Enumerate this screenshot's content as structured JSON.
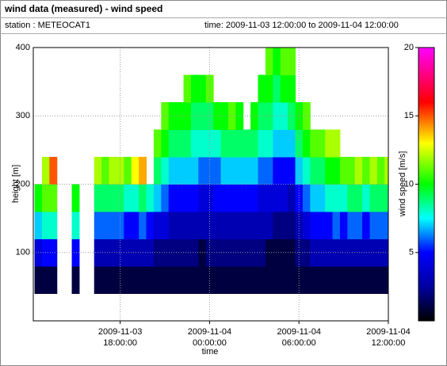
{
  "chart_data": {
    "type": "heatmap",
    "title": "wind data (measured) - wind speed",
    "station": "station : METEOCAT1",
    "period": "time: 2009-11-03 12:00:00 to 2009-11-04 12:00:00",
    "xlabel": "time",
    "ylabel": "height [m]",
    "zlabel": "wind speed [m/s]",
    "xlim": [
      "2009-11-03 12:10:00",
      "2009-11-04 12:00:00"
    ],
    "xticks": [
      "2009-11-03 18:00:00",
      "2009-11-04 00:00:00",
      "2009-11-04 06:00:00",
      "2009-11-04 12:00:00"
    ],
    "ylim": [
      0,
      400
    ],
    "yticks": [
      100,
      200,
      300,
      400
    ],
    "zlim": [
      0,
      20
    ],
    "zticks": [
      5,
      10,
      15,
      20
    ],
    "grid": true,
    "colorscale": [
      [
        0,
        "#000000"
      ],
      [
        2.5,
        "#0000a0"
      ],
      [
        5,
        "#0000ff"
      ],
      [
        7.5,
        "#00ffff"
      ],
      [
        10,
        "#00ff00"
      ],
      [
        13,
        "#ffff00"
      ],
      [
        16,
        "#ff0000"
      ],
      [
        20,
        "#ff00ff"
      ]
    ],
    "heights": [
      40,
      80,
      120,
      160,
      200,
      240,
      280,
      320,
      360
    ],
    "x": [
      "2009-11-03 12:15:00",
      "2009-11-03 12:45:00",
      "2009-11-03 13:15:00",
      "2009-11-03 13:45:00",
      "2009-11-03 14:15:00",
      "2009-11-03 14:45:00",
      "2009-11-03 15:15:00",
      "2009-11-03 15:45:00",
      "2009-11-03 16:15:00",
      "2009-11-03 16:45:00",
      "2009-11-03 17:15:00",
      "2009-11-03 17:45:00",
      "2009-11-03 18:15:00",
      "2009-11-03 18:45:00",
      "2009-11-03 19:15:00",
      "2009-11-03 19:45:00",
      "2009-11-03 20:15:00",
      "2009-11-03 20:45:00",
      "2009-11-03 21:15:00",
      "2009-11-03 21:45:00",
      "2009-11-03 22:15:00",
      "2009-11-03 22:45:00",
      "2009-11-03 23:15:00",
      "2009-11-03 23:45:00",
      "2009-11-04 00:15:00",
      "2009-11-04 00:45:00",
      "2009-11-04 01:15:00",
      "2009-11-04 01:45:00",
      "2009-11-04 02:15:00",
      "2009-11-04 02:45:00",
      "2009-11-04 03:15:00",
      "2009-11-04 03:45:00",
      "2009-11-04 04:15:00",
      "2009-11-04 04:45:00",
      "2009-11-04 05:15:00",
      "2009-11-04 05:45:00",
      "2009-11-04 06:15:00",
      "2009-11-04 06:45:00",
      "2009-11-04 07:15:00",
      "2009-11-04 07:45:00",
      "2009-11-04 08:15:00",
      "2009-11-04 08:45:00",
      "2009-11-04 09:15:00",
      "2009-11-04 09:45:00",
      "2009-11-04 10:15:00",
      "2009-11-04 10:45:00",
      "2009-11-04 11:15:00",
      "2009-11-04 11:45:00"
    ],
    "values": [
      [
        1,
        4,
        7,
        10,
        null,
        null,
        null,
        null,
        null
      ],
      [
        1,
        5,
        8,
        11,
        12,
        null,
        null,
        null,
        null
      ],
      [
        1,
        5,
        8,
        11,
        15,
        null,
        null,
        null,
        null
      ],
      [
        null,
        null,
        null,
        null,
        null,
        null,
        null,
        null,
        null
      ],
      [
        null,
        null,
        null,
        null,
        null,
        null,
        null,
        null,
        null
      ],
      [
        1,
        5,
        8,
        10,
        null,
        null,
        null,
        null,
        null
      ],
      [
        null,
        null,
        null,
        null,
        null,
        null,
        null,
        null,
        null
      ],
      [
        null,
        null,
        null,
        null,
        null,
        null,
        null,
        null,
        null
      ],
      [
        1,
        3,
        6,
        9,
        12,
        null,
        null,
        null,
        null
      ],
      [
        1,
        3,
        6,
        9,
        11,
        null,
        null,
        null,
        null
      ],
      [
        1,
        3,
        6,
        9,
        12,
        null,
        null,
        null,
        null
      ],
      [
        1,
        3,
        6,
        9,
        12,
        null,
        null,
        null,
        null
      ],
      [
        1,
        3,
        5,
        8,
        11,
        null,
        null,
        null,
        null
      ],
      [
        1,
        3,
        5,
        8,
        13,
        null,
        null,
        null,
        null
      ],
      [
        1,
        3,
        6,
        9,
        14,
        null,
        null,
        null,
        null
      ],
      [
        1,
        3,
        5,
        8,
        null,
        null,
        null,
        null,
        null
      ],
      [
        1,
        2,
        4,
        7,
        9,
        11,
        null,
        null,
        null
      ],
      [
        1,
        2,
        4,
        6,
        8,
        10,
        11,
        null,
        null
      ],
      [
        1,
        2,
        3,
        5,
        7,
        9,
        10,
        null,
        null
      ],
      [
        1,
        2,
        3,
        5,
        7,
        9,
        10,
        null,
        null
      ],
      [
        1,
        2,
        3,
        5,
        7,
        9,
        10,
        11,
        null
      ],
      [
        1,
        2,
        3,
        5,
        7,
        8,
        9,
        10,
        null
      ],
      [
        1,
        1,
        3,
        4,
        6,
        8,
        9,
        10,
        null
      ],
      [
        1,
        2,
        3,
        4,
        6,
        8,
        9,
        11,
        null
      ],
      [
        1,
        2,
        3,
        5,
        6,
        8,
        10,
        null,
        null
      ],
      [
        1,
        2,
        3,
        5,
        7,
        9,
        10,
        null,
        null
      ],
      [
        1,
        2,
        3,
        5,
        7,
        9,
        11,
        null,
        null
      ],
      [
        1,
        2,
        3,
        5,
        7,
        9,
        10,
        null,
        null
      ],
      [
        1,
        2,
        3,
        5,
        7,
        9,
        null,
        null,
        null
      ],
      [
        1,
        2,
        3,
        5,
        7,
        9,
        10,
        null,
        null
      ],
      [
        1,
        2,
        3,
        4,
        6,
        8,
        9,
        10,
        null
      ],
      [
        1,
        1,
        3,
        4,
        6,
        8,
        9,
        10,
        11
      ],
      [
        1,
        1,
        2,
        4,
        5,
        7,
        8,
        9,
        10
      ],
      [
        1,
        1,
        2,
        4,
        5,
        7,
        8,
        10,
        11
      ],
      [
        1,
        1,
        2,
        3,
        5,
        7,
        9,
        10,
        11
      ],
      [
        1,
        2,
        3,
        5,
        7,
        9,
        10,
        null,
        null
      ],
      [
        1,
        2,
        4,
        6,
        8,
        10,
        11,
        null,
        null
      ],
      [
        1,
        3,
        5,
        7,
        9,
        11,
        null,
        null,
        null
      ],
      [
        1,
        3,
        5,
        7,
        9,
        11,
        null,
        null,
        null
      ],
      [
        1,
        3,
        5,
        8,
        10,
        12,
        null,
        null,
        null
      ],
      [
        1,
        3,
        6,
        8,
        10,
        12,
        null,
        null,
        null
      ],
      [
        1,
        3,
        5,
        8,
        11,
        null,
        null,
        null,
        null
      ],
      [
        1,
        3,
        6,
        9,
        11,
        null,
        null,
        null,
        null
      ],
      [
        1,
        3,
        6,
        9,
        12,
        null,
        null,
        null,
        null
      ],
      [
        1,
        3,
        5,
        8,
        11,
        null,
        null,
        null,
        null
      ],
      [
        1,
        3,
        6,
        9,
        12,
        null,
        null,
        null,
        null
      ],
      [
        1,
        3,
        6,
        9,
        11,
        null,
        null,
        null,
        null
      ],
      [
        1,
        3,
        6,
        9,
        12,
        null,
        null,
        null,
        null
      ]
    ]
  }
}
